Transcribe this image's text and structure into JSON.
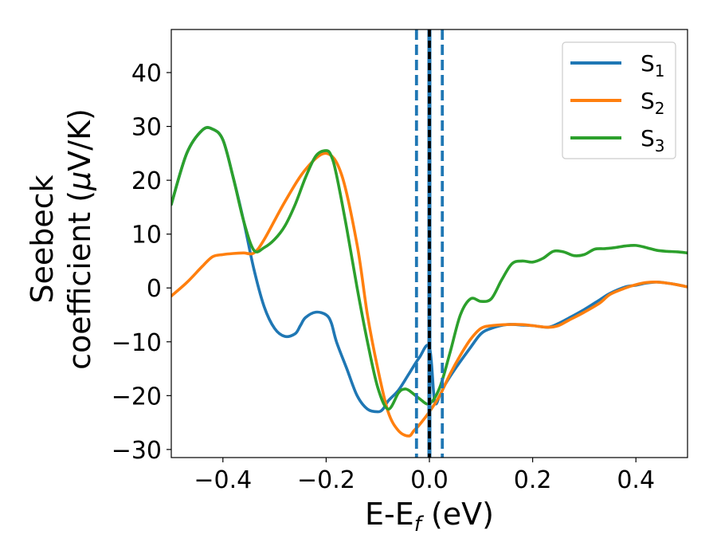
{
  "chart_data": {
    "type": "line",
    "xlabel": {
      "main": "E-E",
      "sub": "f",
      "unit": " (eV)"
    },
    "ylabel": {
      "line1": "Seebeck",
      "line2_pre": "coefficient  (",
      "mu": "μ",
      "line2_post": "V/K)"
    },
    "xlim": [
      -0.5,
      0.5
    ],
    "ylim": [
      -31.5,
      48
    ],
    "xticks": [
      -0.4,
      -0.2,
      0.0,
      0.2,
      0.4
    ],
    "xtick_labels": [
      "−0.4",
      "−0.2",
      "0.0",
      "0.2",
      "0.4"
    ],
    "yticks": [
      -30,
      -20,
      -10,
      0,
      10,
      20,
      30,
      40
    ],
    "ytick_labels": [
      "−30",
      "−20",
      "−10",
      "0",
      "10",
      "20",
      "30",
      "40"
    ],
    "legend_position": "top-right",
    "series": [
      {
        "name": "S",
        "sub": "1",
        "color": "#1f77b4",
        "x": [
          -0.5,
          -0.47,
          -0.44,
          -0.42,
          -0.4,
          -0.38,
          -0.36,
          -0.34,
          -0.32,
          -0.3,
          -0.28,
          -0.26,
          -0.25,
          -0.24,
          -0.22,
          -0.2,
          -0.19,
          -0.18,
          -0.16,
          -0.14,
          -0.12,
          -0.1,
          -0.09,
          -0.08,
          -0.06,
          -0.04,
          -0.02,
          0.0,
          0.01,
          0.02,
          0.03,
          0.05,
          0.08,
          0.1,
          0.12,
          0.15,
          0.18,
          0.2,
          0.23,
          0.25,
          0.27,
          0.3,
          0.33,
          0.35,
          0.38,
          0.4,
          0.42,
          0.44,
          0.46,
          0.48,
          0.5
        ],
        "y": [
          15.5,
          25,
          29.3,
          29.5,
          27.5,
          20.5,
          12.5,
          3.5,
          -3.5,
          -7.5,
          -9,
          -8.5,
          -7,
          -5.5,
          -4.5,
          -5,
          -6.5,
          -10,
          -15,
          -20,
          -22.5,
          -23,
          -22.5,
          -21,
          -19,
          -16,
          -13,
          -11,
          -21,
          -20,
          -18,
          -15,
          -11,
          -8.5,
          -7.5,
          -6.8,
          -6.9,
          -7,
          -7.3,
          -6.6,
          -5.6,
          -4,
          -2.2,
          -1,
          0.2,
          0.5,
          0.9,
          1.1,
          0.9,
          0.6,
          0.2
        ]
      },
      {
        "name": "S",
        "sub": "2",
        "color": "#ff7f0e",
        "x": [
          -0.5,
          -0.47,
          -0.44,
          -0.42,
          -0.4,
          -0.38,
          -0.36,
          -0.34,
          -0.32,
          -0.28,
          -0.24,
          -0.2,
          -0.17,
          -0.14,
          -0.12,
          -0.1,
          -0.08,
          -0.06,
          -0.04,
          -0.03,
          -0.02,
          0.0,
          0.02,
          0.04,
          0.06,
          0.08,
          0.1,
          0.12,
          0.15,
          0.18,
          0.2,
          0.23,
          0.25,
          0.27,
          0.3,
          0.33,
          0.35,
          0.38,
          0.4,
          0.42,
          0.44,
          0.46,
          0.48,
          0.5
        ],
        "y": [
          -1.5,
          1,
          4,
          5.8,
          6.2,
          6.4,
          6.5,
          6.5,
          9,
          16,
          22,
          25,
          21,
          8,
          -5,
          -15,
          -23,
          -26.5,
          -27.5,
          -26.5,
          -25.5,
          -23,
          -20,
          -16,
          -12.5,
          -9.5,
          -7.5,
          -7,
          -6.8,
          -6.8,
          -7,
          -7.3,
          -7,
          -6,
          -4.5,
          -2.8,
          -1.2,
          0,
          0.6,
          1,
          1.1,
          0.9,
          0.6,
          0.2
        ]
      },
      {
        "name": "S",
        "sub": "3",
        "color": "#2ca02c",
        "x": [
          -0.5,
          -0.47,
          -0.44,
          -0.42,
          -0.4,
          -0.38,
          -0.36,
          -0.34,
          -0.32,
          -0.3,
          -0.28,
          -0.26,
          -0.24,
          -0.22,
          -0.2,
          -0.19,
          -0.18,
          -0.16,
          -0.14,
          -0.12,
          -0.1,
          -0.08,
          -0.06,
          -0.05,
          -0.04,
          -0.02,
          0.0,
          0.02,
          0.04,
          0.06,
          0.08,
          0.1,
          0.12,
          0.14,
          0.16,
          0.18,
          0.2,
          0.22,
          0.24,
          0.26,
          0.28,
          0.3,
          0.32,
          0.34,
          0.36,
          0.38,
          0.4,
          0.42,
          0.44,
          0.46,
          0.48,
          0.5
        ],
        "y": [
          15.5,
          25,
          29.3,
          29.5,
          27.5,
          20.5,
          12.5,
          7,
          7.5,
          9,
          11.5,
          15.5,
          20.5,
          24.5,
          25.5,
          24.5,
          21,
          11,
          0,
          -10,
          -18.5,
          -22.5,
          -19.5,
          -18.8,
          -19,
          -20.5,
          -21.5,
          -18.5,
          -12,
          -5,
          -2,
          -2.5,
          -2,
          1.5,
          4.5,
          5,
          4.8,
          5.5,
          6.8,
          6.7,
          6,
          6.2,
          7.2,
          7.3,
          7.5,
          7.8,
          7.9,
          7.5,
          7,
          6.8,
          6.7,
          6.5
        ]
      }
    ],
    "vlines": [
      {
        "x": -0.025,
        "color": "#1f77b4",
        "style": "dashed"
      },
      {
        "x": 0.0,
        "color": "#1f77b4",
        "style": "solid"
      },
      {
        "x": 0.0,
        "color": "#000000",
        "style": "dashed"
      },
      {
        "x": 0.025,
        "color": "#1f77b4",
        "style": "dashed"
      }
    ]
  }
}
